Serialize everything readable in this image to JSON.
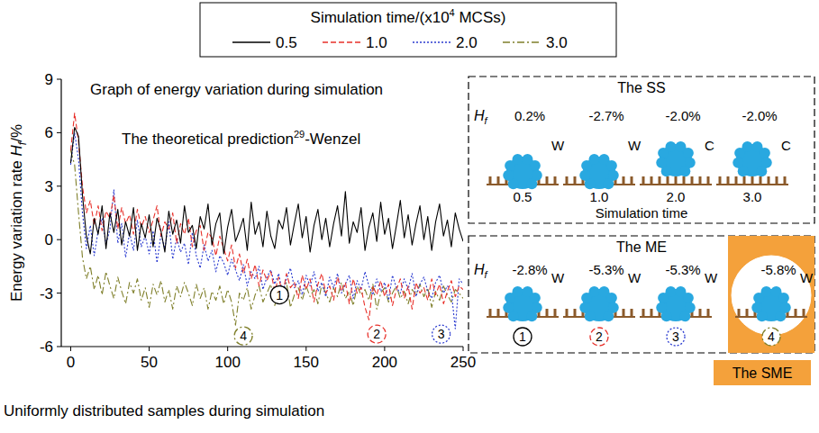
{
  "chart_data": {
    "type": "line",
    "title": "Graph of energy variation during simulation",
    "annotation": {
      "text": "The theoretical prediction",
      "superscript": "29",
      "suffix": "-Wenzel"
    },
    "x_label": "Uniformly distributed samples during simulation",
    "y_label": {
      "text": "Energy variation rate ",
      "symbol": "H",
      "subscript": "f",
      "unit": "/%"
    },
    "legend_title": {
      "text": "Simulation time/(x10",
      "superscript": "4",
      "suffix": " MCSs)"
    },
    "legend": "top",
    "grid": false,
    "xlim": [
      -6,
      250
    ],
    "xticks": [
      0,
      50,
      100,
      150,
      200,
      250
    ],
    "ylim": [
      -6,
      9
    ],
    "yticks": [
      -6,
      -3,
      0,
      3,
      6,
      9
    ],
    "x": [
      0,
      2.5,
      5,
      7.5,
      10,
      12.5,
      15,
      17.5,
      20,
      22.5,
      25,
      27.5,
      30,
      32.5,
      35,
      37.5,
      40,
      42.5,
      45,
      47.5,
      50,
      52.5,
      55,
      57.5,
      60,
      62.5,
      65,
      67.5,
      70,
      72.5,
      75,
      77.5,
      80,
      82.5,
      85,
      87.5,
      90,
      92.5,
      95,
      97.5,
      100,
      102.5,
      105,
      107.5,
      110,
      112.5,
      115,
      117.5,
      120,
      122.5,
      125,
      127.5,
      130,
      132.5,
      135,
      137.5,
      140,
      142.5,
      145,
      147.5,
      150,
      152.5,
      155,
      157.5,
      160,
      162.5,
      165,
      167.5,
      170,
      172.5,
      175,
      177.5,
      180,
      182.5,
      185,
      187.5,
      190,
      192.5,
      195,
      197.5,
      200,
      202.5,
      205,
      207.5,
      210,
      212.5,
      215,
      217.5,
      220,
      222.5,
      225,
      227.5,
      230,
      232.5,
      235,
      237.5,
      240,
      242.5,
      245,
      247.5,
      250
    ],
    "series": [
      {
        "name": "0.5",
        "color": "#000000",
        "line_style": "solid",
        "values": [
          4.3,
          6.3,
          5.8,
          2.5,
          0.2,
          -0.8,
          1.2,
          0.3,
          1.9,
          -0.5,
          1.5,
          0.4,
          1.7,
          -0.3,
          1.0,
          0.2,
          1.8,
          -0.6,
          0.9,
          0.1,
          1.4,
          -0.4,
          1.2,
          0.5,
          -0.7,
          1.6,
          0.3,
          1.1,
          -0.2,
          1.9,
          0.4,
          0.8,
          -0.5,
          1.3,
          0.6,
          2.0,
          -0.3,
          0.9,
          1.5,
          -0.8,
          0.7,
          1.7,
          -0.1,
          0.5,
          1.2,
          -0.6,
          2.1,
          0.3,
          1.0,
          -0.4,
          1.6,
          0.2,
          -0.5,
          1.1,
          0.6,
          1.8,
          -0.3,
          0.9,
          2.0,
          0.1,
          1.3,
          -0.7,
          0.8,
          1.7,
          0.0,
          1.2,
          -0.4,
          0.9,
          1.9,
          0.2,
          2.7,
          -0.2,
          1.0,
          0.4,
          1.8,
          -0.6,
          0.7,
          1.5,
          -0.1,
          2.1,
          0.3,
          1.2,
          -0.5,
          0.8,
          2.2,
          0.1,
          1.4,
          -0.3,
          0.9,
          1.9,
          0.0,
          1.3,
          -0.6,
          1.0,
          2.0,
          0.2,
          1.1,
          -0.4,
          1.5,
          0.6,
          -0.1
        ]
      },
      {
        "name": "1.0",
        "color": "#e8302a",
        "line_style": "dashed",
        "values": [
          5.0,
          7.1,
          5.5,
          3.0,
          1.5,
          2.2,
          0.8,
          1.9,
          0.5,
          1.6,
          1.2,
          2.5,
          0.6,
          1.8,
          0.9,
          1.4,
          0.3,
          1.7,
          0.7,
          1.3,
          0.4,
          1.1,
          1.9,
          0.2,
          1.0,
          0.6,
          1.5,
          -0.2,
          0.9,
          0.3,
          1.2,
          -0.4,
          0.5,
          0.8,
          -0.6,
          0.4,
          0.1,
          -0.9,
          0.2,
          -0.5,
          -1.2,
          -0.3,
          -1.6,
          -0.8,
          -1.9,
          -1.1,
          -2.2,
          -1.4,
          -2.6,
          -1.7,
          -2.3,
          -1.8,
          -2.9,
          -2.1,
          -3.1,
          -1.9,
          -2.7,
          -2.4,
          -3.3,
          -2.0,
          -2.8,
          -2.2,
          -3.5,
          -2.5,
          -1.9,
          -3.0,
          -2.6,
          -3.4,
          -2.1,
          -2.9,
          -2.4,
          -3.6,
          -2.2,
          -3.0,
          -2.7,
          -3.8,
          -4.5,
          -2.6,
          -3.1,
          -2.3,
          -3.2,
          -2.5,
          -3.7,
          -2.8,
          -2.2,
          -3.3,
          -2.6,
          -3.9,
          -2.4,
          -3.0,
          -2.7,
          -3.4,
          -2.2,
          -3.1,
          -2.5,
          -3.6,
          -2.9,
          -2.3,
          -3.2,
          -2.6,
          -2.8
        ]
      },
      {
        "name": "2.0",
        "color": "#2b3bd0",
        "line_style": "dotted",
        "values": [
          4.2,
          6.0,
          4.5,
          1.5,
          -0.5,
          0.8,
          -0.9,
          0.5,
          1.2,
          -0.3,
          0.6,
          2.8,
          -0.2,
          0.9,
          -1.0,
          0.4,
          -0.6,
          1.1,
          -0.4,
          0.2,
          -0.8,
          0.5,
          -1.3,
          0.3,
          -0.5,
          1.0,
          -1.1,
          0.1,
          -0.7,
          -0.2,
          -1.4,
          0.4,
          -0.9,
          -1.6,
          -0.3,
          -1.2,
          -0.6,
          -1.8,
          -0.9,
          -1.3,
          -2.0,
          -1.1,
          -1.7,
          -2.3,
          -1.4,
          -2.6,
          -1.8,
          -2.2,
          -1.5,
          -2.8,
          -2.1,
          -1.7,
          -2.5,
          -1.9,
          -3.0,
          -2.2,
          -1.6,
          -2.7,
          -2.3,
          -3.1,
          -2.0,
          -2.6,
          -1.8,
          -2.9,
          -2.4,
          -3.2,
          -2.1,
          -2.7,
          -1.9,
          -3.0,
          -2.5,
          -2.0,
          -3.3,
          -2.3,
          -2.8,
          -1.8,
          -2.6,
          -3.1,
          -2.2,
          -2.9,
          -2.4,
          -3.4,
          -2.0,
          -2.7,
          -3.0,
          -2.2,
          -2.8,
          -1.9,
          -3.2,
          -2.5,
          -2.1,
          -2.9,
          -3.3,
          -2.4,
          -2.0,
          -3.0,
          -2.6,
          -2.9,
          -5.0,
          -2.2,
          -2.5
        ]
      },
      {
        "name": "3.0",
        "color": "#7f7f2a",
        "line_style": "dashdot",
        "values": [
          5.0,
          4.2,
          1.5,
          -1.0,
          -2.2,
          -1.5,
          -2.8,
          -2.0,
          -3.1,
          -1.8,
          -2.6,
          -3.3,
          -2.1,
          -2.9,
          -3.6,
          -2.4,
          -3.0,
          -2.2,
          -3.4,
          -2.7,
          -3.8,
          -2.5,
          -3.1,
          -2.3,
          -3.5,
          -2.8,
          -3.9,
          -2.6,
          -3.2,
          -2.4,
          -3.0,
          -3.7,
          -2.5,
          -3.3,
          -2.7,
          -3.9,
          -2.9,
          -3.4,
          -2.6,
          -3.6,
          -2.8,
          -3.5,
          -4.8,
          -3.0,
          -3.4,
          -2.7,
          -3.9,
          -3.1,
          -2.6,
          -3.5,
          -3.0,
          -2.5,
          -3.7,
          -2.9,
          -3.3,
          -2.4,
          -3.8,
          -3.1,
          -2.7,
          -3.4,
          -2.6,
          -3.2,
          -2.8,
          -3.6,
          -2.5,
          -3.0,
          -3.5,
          -2.7,
          -3.2,
          -2.4,
          -3.3,
          -2.9,
          -3.7,
          -2.6,
          -3.1,
          -2.8,
          -3.4,
          -2.5,
          -3.9,
          -3.0,
          -2.7,
          -3.5,
          -3.0,
          -2.6,
          -3.3,
          -2.9,
          -3.6,
          -2.8,
          -3.1,
          -2.5,
          -3.2,
          -2.7,
          -3.8,
          -2.9,
          -3.4,
          -2.6,
          -3.1,
          -3.5,
          -2.8,
          -3.0,
          -3.3
        ]
      }
    ],
    "markers": [
      {
        "label": "1",
        "x": 133,
        "y": -3.1,
        "color": "#000000",
        "line_style": "solid"
      },
      {
        "label": "2",
        "x": 195,
        "y": -5.3,
        "color": "#e8302a",
        "line_style": "dashed"
      },
      {
        "label": "3",
        "x": 236,
        "y": -5.3,
        "color": "#2b3bd0",
        "line_style": "dotted"
      },
      {
        "label": "4",
        "x": 110,
        "y": -5.4,
        "color": "#7f7f2a",
        "line_style": "dashdot"
      }
    ],
    "panels": [
      {
        "title": "The SS",
        "row_label": {
          "symbol": "H",
          "subscript": "f"
        },
        "axis_label": "Simulation time",
        "items": [
          {
            "value_label": "0.2%",
            "state": "W",
            "caption": "0.5"
          },
          {
            "value_label": "-2.7%",
            "state": "W",
            "caption": "1.0"
          },
          {
            "value_label": "-2.0%",
            "state": "C",
            "caption": "2.0"
          },
          {
            "value_label": "-2.0%",
            "state": "C",
            "caption": "3.0"
          }
        ]
      },
      {
        "title": "The ME",
        "row_label": {
          "symbol": "H",
          "subscript": "f"
        },
        "highlight_label": "The SME",
        "items": [
          {
            "value_label": "-2.8%",
            "state": "W",
            "caption": "1",
            "color": "#000000",
            "line_style": "solid"
          },
          {
            "value_label": "-5.3%",
            "state": "W",
            "caption": "2",
            "color": "#e8302a",
            "line_style": "dashed"
          },
          {
            "value_label": "-5.3%",
            "state": "W",
            "caption": "3",
            "color": "#2b3bd0",
            "line_style": "dotted"
          },
          {
            "value_label": "-5.8%",
            "state": "W",
            "caption": "4",
            "color": "#7f7f2a",
            "line_style": "dashdot",
            "highlight": true
          }
        ]
      }
    ]
  }
}
